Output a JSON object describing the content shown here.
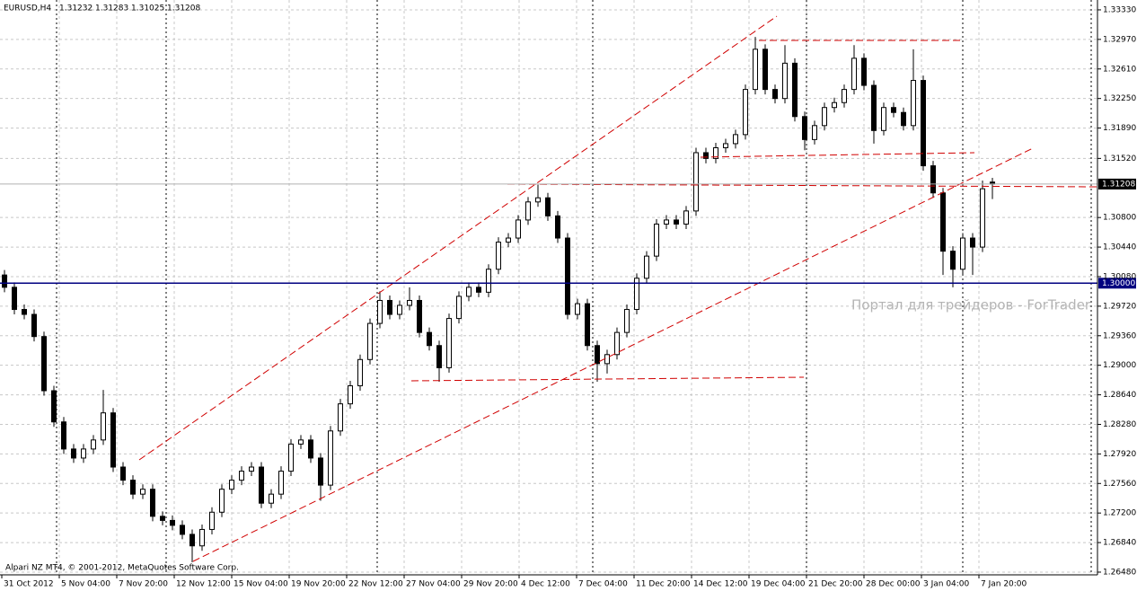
{
  "chart_data": {
    "type": "candlestick",
    "symbol": "EURUSD,H4",
    "credit": "Alpari NZ MT4, © 2001-2012, MetaQuotes Software Corp.",
    "watermark": "Портал для трейдеров - ForTrader",
    "ylim": [
      1.26447,
      1.3345
    ],
    "yticks": [
      {
        "value": 1.3333,
        "label": "1.33330"
      },
      {
        "value": 1.3297,
        "label": "1.32970"
      },
      {
        "value": 1.3261,
        "label": "1.32610"
      },
      {
        "value": 1.3225,
        "label": "1.32250"
      },
      {
        "value": 1.3189,
        "label": "1.31890"
      },
      {
        "value": 1.3152,
        "label": "1.31520"
      },
      {
        "value": 1.308,
        "label": "1.30800"
      },
      {
        "value": 1.3044,
        "label": "1.30440"
      },
      {
        "value": 1.3008,
        "label": "1.30080"
      },
      {
        "value": 1.2972,
        "label": "1.29720"
      },
      {
        "value": 1.2936,
        "label": "1.29360"
      },
      {
        "value": 1.29,
        "label": "1.29000"
      },
      {
        "value": 1.2864,
        "label": "1.28640"
      },
      {
        "value": 1.2828,
        "label": "1.28280"
      },
      {
        "value": 1.2792,
        "label": "1.27920"
      },
      {
        "value": 1.2756,
        "label": "1.27560"
      },
      {
        "value": 1.272,
        "label": "1.27200"
      },
      {
        "value": 1.2684,
        "label": "1.26840"
      },
      {
        "value": 1.2648,
        "label": "1.26480"
      }
    ],
    "hline": {
      "value": 1.3,
      "label": "1.30000",
      "color": "#000080"
    },
    "xlabels": [
      "31 Oct 2012",
      "5 Nov 04:00",
      "7 Nov 20:00",
      "12 Nov 12:00",
      "15 Nov 04:00",
      "19 Nov 20:00",
      "22 Nov 12:00",
      "27 Nov 04:00",
      "29 Nov 20:00",
      "4 Dec 12:00",
      "7 Dec 04:00",
      "11 Dec 20:00",
      "14 Dec 12:00",
      "19 Dec 04:00",
      "21 Dec 20:00",
      "28 Dec 00:00",
      "3 Jan 04:00",
      "7 Jan 20:00"
    ],
    "grid": true,
    "candles": [
      [
        1.301,
        1.3016,
        1.2989,
        1.2995
      ],
      [
        1.2995,
        1.3001,
        1.2962,
        1.2968
      ],
      [
        1.2968,
        1.2974,
        1.2956,
        1.2962
      ],
      [
        1.2962,
        1.2968,
        1.2929,
        1.2935
      ],
      [
        1.2935,
        1.2941,
        1.2863,
        1.2869
      ],
      [
        1.2869,
        1.2875,
        1.2825,
        1.2831
      ],
      [
        1.2831,
        1.2837,
        1.2792,
        1.2798
      ],
      [
        1.2798,
        1.2804,
        1.2781,
        1.2787
      ],
      [
        1.2787,
        1.2804,
        1.2781,
        1.2798
      ],
      [
        1.2798,
        1.2815,
        1.2792,
        1.2809
      ],
      [
        1.2809,
        1.287,
        1.2803,
        1.2842
      ],
      [
        1.2842,
        1.2848,
        1.277,
        1.2776
      ],
      [
        1.2776,
        1.2782,
        1.2754,
        1.276
      ],
      [
        1.276,
        1.2766,
        1.2737,
        1.2743
      ],
      [
        1.2743,
        1.2755,
        1.2737,
        1.2749
      ],
      [
        1.2749,
        1.2755,
        1.271,
        1.2716
      ],
      [
        1.2716,
        1.2722,
        1.2705,
        1.2711
      ],
      [
        1.2711,
        1.2717,
        1.2699,
        1.2705
      ],
      [
        1.2705,
        1.2711,
        1.2688,
        1.2694
      ],
      [
        1.2694,
        1.27,
        1.266,
        1.268
      ],
      [
        1.268,
        1.2706,
        1.2674,
        1.27
      ],
      [
        1.27,
        1.2727,
        1.2694,
        1.2721
      ],
      [
        1.2721,
        1.2755,
        1.2715,
        1.2749
      ],
      [
        1.2749,
        1.2766,
        1.2743,
        1.276
      ],
      [
        1.276,
        1.2777,
        1.2754,
        1.2771
      ],
      [
        1.2771,
        1.2782,
        1.2765,
        1.2776
      ],
      [
        1.2776,
        1.2782,
        1.2726,
        1.2732
      ],
      [
        1.2732,
        1.2749,
        1.2726,
        1.2743
      ],
      [
        1.2743,
        1.2777,
        1.2737,
        1.2771
      ],
      [
        1.2771,
        1.281,
        1.2765,
        1.2804
      ],
      [
        1.2804,
        1.2815,
        1.2798,
        1.2809
      ],
      [
        1.2809,
        1.2815,
        1.2781,
        1.2787
      ],
      [
        1.2787,
        1.2793,
        1.2735,
        1.2754
      ],
      [
        1.2754,
        1.2826,
        1.2748,
        1.282
      ],
      [
        1.282,
        1.2859,
        1.2814,
        1.2853
      ],
      [
        1.2853,
        1.2881,
        1.2847,
        1.2875
      ],
      [
        1.2875,
        1.2913,
        1.2869,
        1.2907
      ],
      [
        1.2907,
        1.2957,
        1.2901,
        1.2951
      ],
      [
        1.2951,
        1.299,
        1.2945,
        1.2979
      ],
      [
        1.2979,
        1.2985,
        1.2956,
        1.2962
      ],
      [
        1.2962,
        1.2979,
        1.2956,
        1.2973
      ],
      [
        1.2973,
        1.2995,
        1.2967,
        1.2979
      ],
      [
        1.2979,
        1.2985,
        1.2934,
        1.294
      ],
      [
        1.294,
        1.2946,
        1.2918,
        1.2924
      ],
      [
        1.2924,
        1.293,
        1.288,
        1.2897
      ],
      [
        1.2897,
        1.2963,
        1.2891,
        1.2957
      ],
      [
        1.2957,
        1.299,
        1.2951,
        1.2984
      ],
      [
        1.2984,
        1.3001,
        1.2978,
        1.2995
      ],
      [
        1.2995,
        1.3001,
        1.2983,
        1.2989
      ],
      [
        1.2989,
        1.3023,
        1.2983,
        1.3017
      ],
      [
        1.3017,
        1.3056,
        1.3011,
        1.305
      ],
      [
        1.305,
        1.3061,
        1.3044,
        1.3055
      ],
      [
        1.3055,
        1.3083,
        1.3049,
        1.3077
      ],
      [
        1.3077,
        1.3105,
        1.3071,
        1.3099
      ],
      [
        1.3099,
        1.312,
        1.3093,
        1.3104
      ],
      [
        1.3104,
        1.311,
        1.3076,
        1.3082
      ],
      [
        1.3082,
        1.3088,
        1.3049,
        1.3055
      ],
      [
        1.3055,
        1.3061,
        1.2956,
        1.2962
      ],
      [
        1.2962,
        1.2981,
        1.2956,
        1.2975
      ],
      [
        1.2975,
        1.2981,
        1.2918,
        1.2924
      ],
      [
        1.2924,
        1.293,
        1.288,
        1.2902
      ],
      [
        1.2902,
        1.2919,
        1.289,
        1.2913
      ],
      [
        1.2913,
        1.2946,
        1.2907,
        1.294
      ],
      [
        1.294,
        1.2974,
        1.2934,
        1.2968
      ],
      [
        1.2968,
        1.3012,
        1.2962,
        1.3006
      ],
      [
        1.3006,
        1.3039,
        1.3,
        1.3033
      ],
      [
        1.3033,
        1.3078,
        1.3027,
        1.3072
      ],
      [
        1.3072,
        1.3083,
        1.3066,
        1.3077
      ],
      [
        1.3077,
        1.3083,
        1.3066,
        1.3072
      ],
      [
        1.3072,
        1.3094,
        1.3066,
        1.3088
      ],
      [
        1.3088,
        1.3165,
        1.3082,
        1.3159
      ],
      [
        1.3159,
        1.3165,
        1.3146,
        1.3152
      ],
      [
        1.3152,
        1.3171,
        1.3146,
        1.3165
      ],
      [
        1.3165,
        1.3176,
        1.3159,
        1.317
      ],
      [
        1.317,
        1.3187,
        1.3164,
        1.3181
      ],
      [
        1.3181,
        1.3242,
        1.3175,
        1.3236
      ],
      [
        1.3236,
        1.33,
        1.323,
        1.3285
      ],
      [
        1.3285,
        1.3291,
        1.323,
        1.3236
      ],
      [
        1.3236,
        1.3242,
        1.3219,
        1.3225
      ],
      [
        1.3225,
        1.329,
        1.3219,
        1.3268
      ],
      [
        1.3268,
        1.3274,
        1.3197,
        1.3203
      ],
      [
        1.3203,
        1.3209,
        1.3162,
        1.3175
      ],
      [
        1.3175,
        1.3198,
        1.3169,
        1.3192
      ],
      [
        1.3192,
        1.322,
        1.3186,
        1.3214
      ],
      [
        1.3214,
        1.3226,
        1.3208,
        1.322
      ],
      [
        1.322,
        1.3242,
        1.3214,
        1.3236
      ],
      [
        1.3236,
        1.329,
        1.323,
        1.3274
      ],
      [
        1.3274,
        1.328,
        1.3235,
        1.3241
      ],
      [
        1.3241,
        1.3247,
        1.317,
        1.3186
      ],
      [
        1.3186,
        1.322,
        1.318,
        1.3214
      ],
      [
        1.3214,
        1.322,
        1.3202,
        1.3208
      ],
      [
        1.3208,
        1.3214,
        1.3186,
        1.3192
      ],
      [
        1.3192,
        1.3285,
        1.3186,
        1.3247
      ],
      [
        1.3247,
        1.3253,
        1.3137,
        1.3143
      ],
      [
        1.3143,
        1.3149,
        1.3104,
        1.311
      ],
      [
        1.311,
        1.3116,
        1.301,
        1.3039
      ],
      [
        1.3039,
        1.3045,
        1.2995,
        1.3017
      ],
      [
        1.3017,
        1.3061,
        1.3011,
        1.3055
      ],
      [
        1.3055,
        1.3061,
        1.301,
        1.3044
      ],
      [
        1.3044,
        1.3125,
        1.3038,
        1.3115
      ],
      [
        1.31232,
        1.31283,
        1.31025,
        1.31208
      ]
    ]
  }
}
